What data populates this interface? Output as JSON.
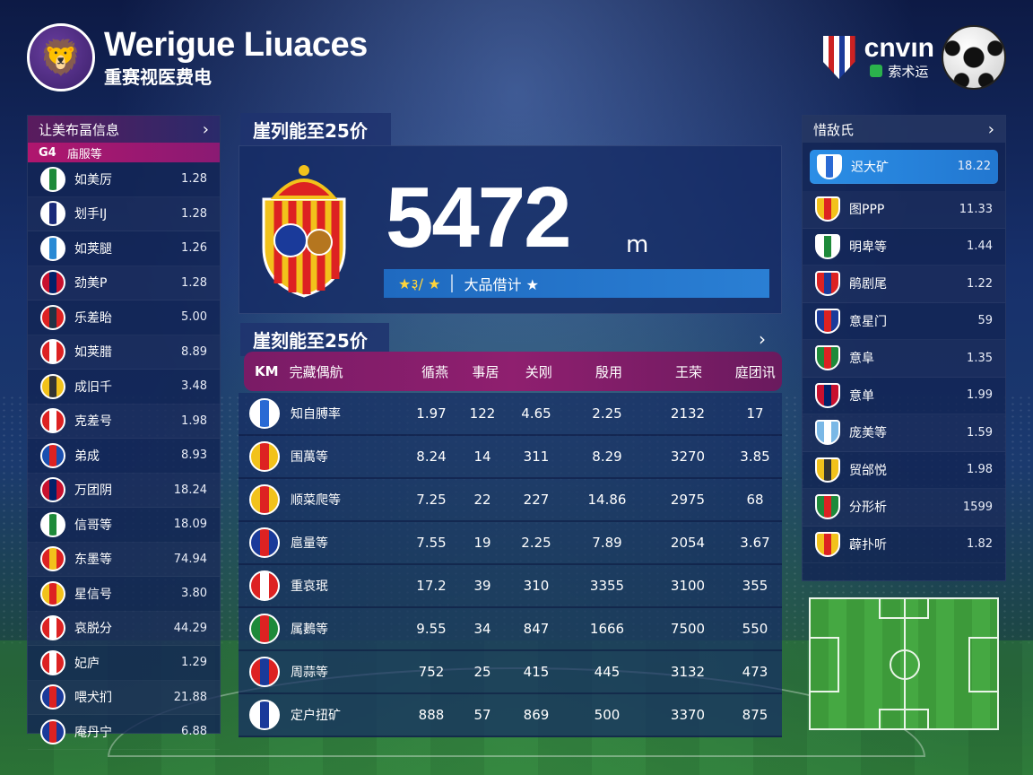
{
  "header": {
    "title": "Werigue Liuaces",
    "subtitle": "重赛视医费电",
    "partner_name": "cnvın",
    "partner_sub": "索术运"
  },
  "colors": {
    "accent_magenta": "#b0166e",
    "accent_blue": "#2a7fd4",
    "panel": "#12244f"
  },
  "left_panel": {
    "title": "让美布畐信息",
    "subhead_code": "G4",
    "subhead_label": "庙服等",
    "items": [
      {
        "name": "如美厉",
        "value": "1.28",
        "crest": "green-shield-icon",
        "c1": "#fff",
        "c2": "#1e8a3a"
      },
      {
        "name": "划手IJ",
        "value": "1.28",
        "crest": "navy-crest-icon",
        "c1": "#fff",
        "c2": "#1a2a7a"
      },
      {
        "name": "如荚腿",
        "value": "1.26",
        "crest": "blue-round-icon",
        "c1": "#fff",
        "c2": "#2a8ad4"
      },
      {
        "name": "劲美P",
        "value": "1.28",
        "crest": "union-flag-icon",
        "c1": "#c8102e",
        "c2": "#012169"
      },
      {
        "name": "乐差眙",
        "value": "5.00",
        "crest": "blue-red-round-icon",
        "c1": "#d22",
        "c2": "#234"
      },
      {
        "name": "如荚腊",
        "value": "8.89",
        "crest": "red-white-icon",
        "c1": "#d22",
        "c2": "#fff"
      },
      {
        "name": "成旧千",
        "value": "3.48",
        "crest": "yellow-crest-icon",
        "c1": "#f2c21b",
        "c2": "#333"
      },
      {
        "name": "克差号",
        "value": "1.98",
        "crest": "red-white-round-icon",
        "c1": "#d22",
        "c2": "#fff"
      },
      {
        "name": "弟成",
        "value": "8.93",
        "crest": "blue-red-shield-icon",
        "c1": "#1a4fb0",
        "c2": "#d22"
      },
      {
        "name": "万团阴",
        "value": "18.24",
        "crest": "union-flag-icon",
        "c1": "#c8102e",
        "c2": "#012169"
      },
      {
        "name": "信哥等",
        "value": "18.09",
        "crest": "green-round-icon",
        "c1": "#fff",
        "c2": "#1e8a3a"
      },
      {
        "name": "东墨等",
        "value": "74.94",
        "crest": "red-star-icon",
        "c1": "#d22",
        "c2": "#f2c21b"
      },
      {
        "name": "星信号",
        "value": "3.80",
        "crest": "catalan-stripes-icon",
        "c1": "#f2c21b",
        "c2": "#d22"
      },
      {
        "name": "哀脱分",
        "value": "44.29",
        "crest": "red-blue-round-icon",
        "c1": "#d22",
        "c2": "#fff"
      },
      {
        "name": "妃庐",
        "value": "1.29",
        "crest": "red-white-round-icon",
        "c1": "#d22",
        "c2": "#fff"
      },
      {
        "name": "喂犬扪",
        "value": "21.88",
        "crest": "french-stripes-icon",
        "c1": "#1a3a9a",
        "c2": "#d22"
      },
      {
        "name": "庵丹宁",
        "value": "6.88",
        "crest": "french-stripes-icon",
        "c1": "#1a3a9a",
        "c2": "#d22"
      }
    ]
  },
  "top_card": {
    "section_title": "崖列能至25价",
    "big_number": "5472",
    "unit": "m",
    "rank_stars": "★३/ ★",
    "rank_label": "大品借计 ★"
  },
  "table": {
    "section_title": "崖刻能至25价",
    "columns": [
      "完藏偶航",
      "循燕",
      "事居",
      "关刚",
      "殷用",
      "王荣",
      "庭团讯"
    ],
    "header_code": "KM",
    "rows": [
      {
        "team": "知自膊率",
        "v": [
          "1.97",
          "122",
          "4.65",
          "2.25",
          "2132",
          "17"
        ],
        "crest": "blue-round-icon",
        "c1": "#fff",
        "c2": "#2a6ad4"
      },
      {
        "team": "围萬等",
        "v": [
          "8.24",
          "14",
          "311",
          "8.29",
          "3270",
          "3.85"
        ],
        "crest": "yellow-crest-icon",
        "c1": "#f2c21b",
        "c2": "#d22"
      },
      {
        "team": "顺菜爬等",
        "v": [
          "7.25",
          "22",
          "227",
          "14.86",
          "2975",
          "68"
        ],
        "crest": "catalan-stripes-icon",
        "c1": "#f2c21b",
        "c2": "#d22"
      },
      {
        "team": "扈量等",
        "v": [
          "7.55",
          "19",
          "2.25",
          "7.89",
          "2054",
          "3.67"
        ],
        "crest": "french-flag-icon",
        "c1": "#1a3a9a",
        "c2": "#d22"
      },
      {
        "team": "重哀珉",
        "v": [
          "17.2",
          "39",
          "310",
          "3355",
          "3100",
          "355"
        ],
        "crest": "red-white-round-icon",
        "c1": "#d22",
        "c2": "#fff"
      },
      {
        "team": "属鶈等",
        "v": [
          "9.55",
          "34",
          "847",
          "1666",
          "7500",
          "550"
        ],
        "crest": "italian-stripes-icon",
        "c1": "#1e8a3a",
        "c2": "#d22"
      },
      {
        "team": "周蒜等",
        "v": [
          "752",
          "25",
          "415",
          "445",
          "3132",
          "473"
        ],
        "crest": "red-blue-stripes-icon",
        "c1": "#d22",
        "c2": "#1a3a9a"
      },
      {
        "team": "定户扭矿",
        "v": [
          "888",
          "57",
          "869",
          "500",
          "3370",
          "875"
        ],
        "crest": "star-round-icon",
        "c1": "#fff",
        "c2": "#1a3a9a"
      }
    ]
  },
  "right_panel": {
    "title": "惜敌氏",
    "items": [
      {
        "name": "迟大矿",
        "value": "18.22",
        "crest": "blue-round-icon",
        "c1": "#fff",
        "c2": "#2a6ad4",
        "active": true
      },
      {
        "name": "图PPP",
        "value": "11.33",
        "crest": "catalan-stripes-icon",
        "c1": "#f2c21b",
        "c2": "#d22"
      },
      {
        "name": "明卑等",
        "value": "1.44",
        "crest": "green-round-icon",
        "c1": "#fff",
        "c2": "#1e8a3a"
      },
      {
        "name": "鹃剧尾",
        "value": "1.22",
        "crest": "red-blue-stripes-icon",
        "c1": "#d22",
        "c2": "#1a3a9a"
      },
      {
        "name": "意星门",
        "value": "59",
        "crest": "french-flag-icon",
        "c1": "#1a3a9a",
        "c2": "#d22"
      },
      {
        "name": "意阜",
        "value": "1.35",
        "crest": "italian-flag-icon",
        "c1": "#1e8a3a",
        "c2": "#d22"
      },
      {
        "name": "意单",
        "value": "1.99",
        "crest": "union-flag-icon",
        "c1": "#c8102e",
        "c2": "#012169"
      },
      {
        "name": "庞美等",
        "value": "1.59",
        "crest": "light-blue-stripes-icon",
        "c1": "#7ab8e6",
        "c2": "#fff"
      },
      {
        "name": "贸邰悦",
        "value": "1.98",
        "crest": "yellow-crest-icon",
        "c1": "#f2c21b",
        "c2": "#333"
      },
      {
        "name": "分形析",
        "value": "1599",
        "crest": "green-red-icon",
        "c1": "#1e8a3a",
        "c2": "#d22"
      },
      {
        "name": "薜扑听",
        "value": "1.82",
        "crest": "red-yellow-round-icon",
        "c1": "#f2c21b",
        "c2": "#d22"
      }
    ]
  }
}
